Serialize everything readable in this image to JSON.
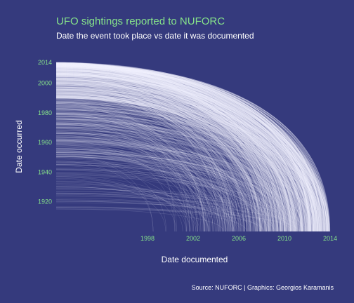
{
  "colors": {
    "background": "#353a7d",
    "title": "#86e38a",
    "text": "#ffffff",
    "ticks": "#86e38a",
    "curves": "#f2f3ff"
  },
  "chart_data": {
    "type": "line",
    "title": "UFO sightings reported to NUFORC",
    "subtitle": "Date the event took place vs date it was documented",
    "xlabel": "Date documented",
    "ylabel": "Date occurred",
    "caption": "Source: NUFORC | Graphics: Georgios Karamanis",
    "x_ticks": [
      1998,
      2002,
      2006,
      2010,
      2014
    ],
    "y_ticks": [
      1920,
      1940,
      1960,
      1980,
      2000,
      2014
    ],
    "xlim": [
      1998,
      2014
    ],
    "ylim": [
      1900,
      2014
    ],
    "grid": false,
    "legend": "none",
    "description_of_marks": "each curve links a sighting's occurrence date (left edge) to its documentation date (bottom axis); curves are densest for documentation dates after about 2004",
    "curve_groups": [
      {
        "occurred_range": [
          2005,
          2014
        ],
        "documented_range": [
          2008,
          2014
        ]
      },
      {
        "occurred_range": [
          1990,
          2005
        ],
        "documented_range": [
          2004,
          2014
        ]
      },
      {
        "occurred_range": [
          1970,
          1990
        ],
        "documented_range": [
          2000,
          2014
        ]
      },
      {
        "occurred_range": [
          1950,
          1970
        ],
        "documented_range": [
          1998,
          2013
        ]
      },
      {
        "occurred_range": [
          1915,
          1950
        ],
        "documented_range": [
          1998,
          2012
        ]
      }
    ]
  }
}
